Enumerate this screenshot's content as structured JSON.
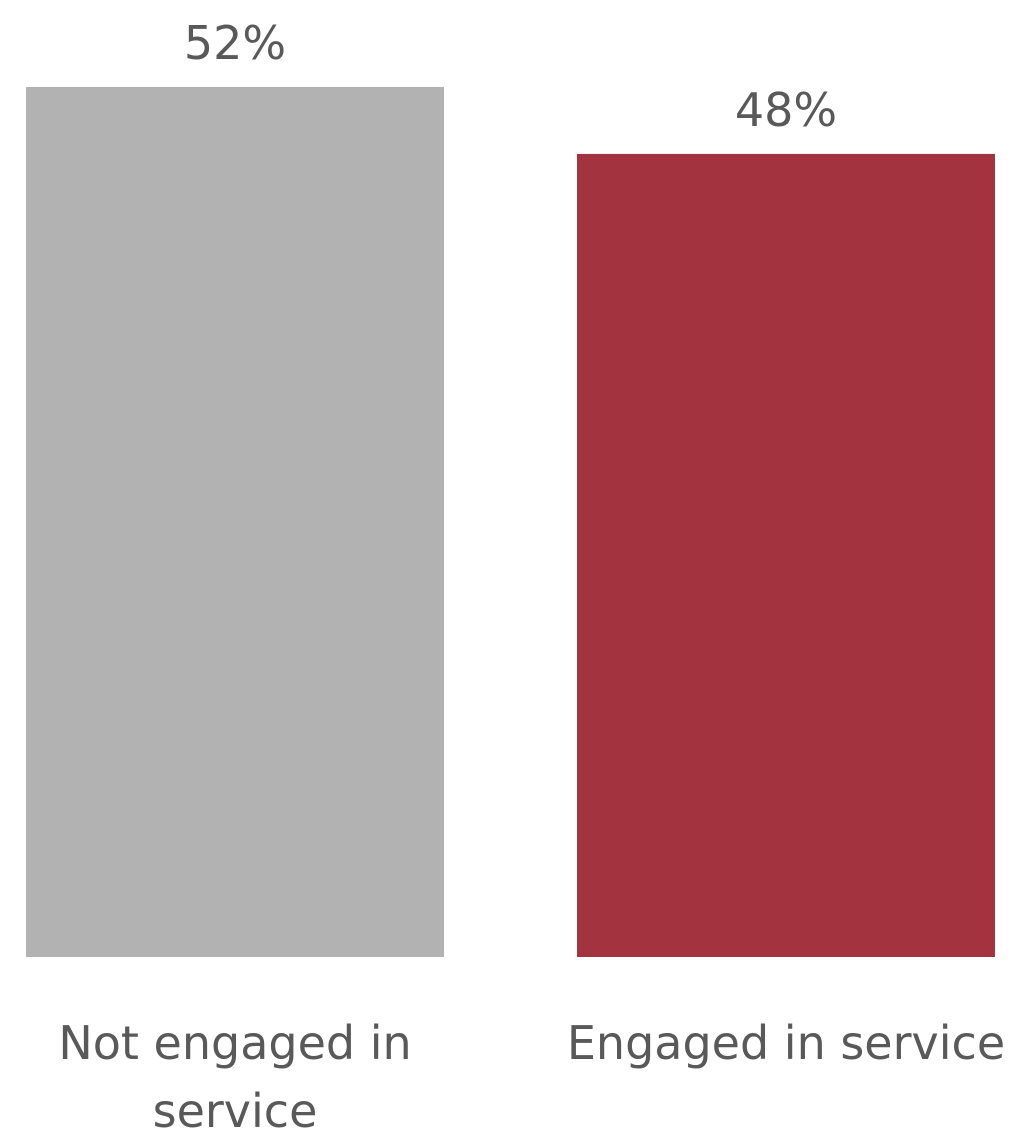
{
  "chart_data": {
    "type": "bar",
    "title": "",
    "xlabel": "",
    "ylabel": "",
    "categories": [
      "Not engaged in service",
      "Engaged in service"
    ],
    "values": [
      52,
      48
    ],
    "value_labels": [
      "52%",
      "48%"
    ],
    "category_label_lines": [
      [
        "Not engaged in",
        "service"
      ],
      [
        "Engaged in service"
      ]
    ],
    "bar_colors": [
      "#b2b2b2",
      "#a3343f"
    ],
    "ylim": [
      0,
      52
    ],
    "grid": false,
    "legend": "none"
  }
}
